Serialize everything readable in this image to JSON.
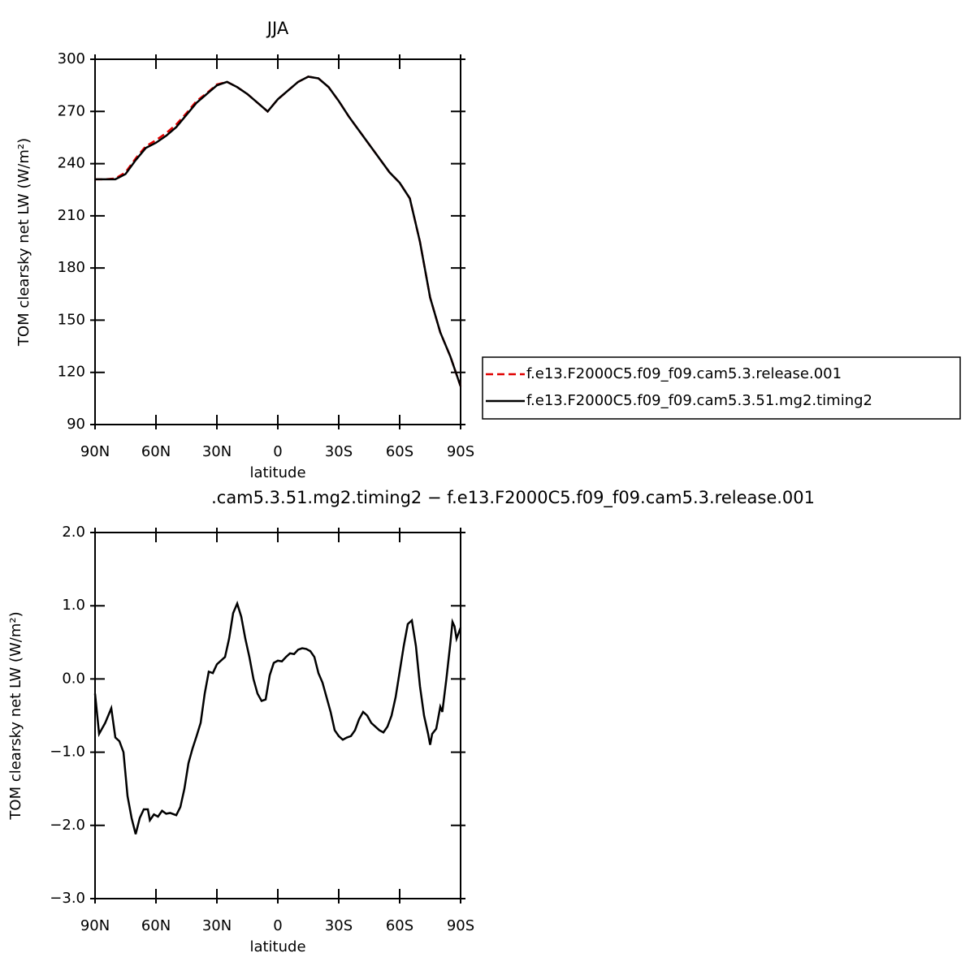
{
  "chart_data": [
    {
      "type": "line",
      "title": "JJA",
      "xlabel": "latitude",
      "ylabel": "TOM clearsky net LW (W/m²)",
      "xlim": [
        90,
        -90
      ],
      "xticks": [
        {
          "value": 90,
          "label": "90N"
        },
        {
          "value": 60,
          "label": "60N"
        },
        {
          "value": 30,
          "label": "30N"
        },
        0,
        {
          "value": -30,
          "label": "30S"
        },
        {
          "value": -60,
          "label": "60S"
        },
        {
          "value": -90,
          "label": "90S"
        }
      ],
      "ylim": [
        90,
        300
      ],
      "yticks": [
        90,
        120,
        150,
        180,
        210,
        240,
        270,
        300
      ],
      "legend": "right",
      "x": [
        90,
        85,
        80,
        75,
        70,
        65,
        60,
        55,
        50,
        45,
        40,
        35,
        30,
        25,
        20,
        15,
        10,
        5,
        0,
        -5,
        -10,
        -15,
        -20,
        -25,
        -30,
        -35,
        -40,
        -45,
        -50,
        -55,
        -60,
        -65,
        -70,
        -75,
        -80,
        -85,
        -90
      ],
      "series": [
        {
          "name": "f.e13.F2000C5.f09_f09.cam5.3.release.001",
          "color": "#e00000",
          "dash": "dashed",
          "values": [
            231,
            231,
            231.5,
            235,
            243,
            250,
            253.5,
            257.5,
            262.5,
            269,
            276,
            280.5,
            285.5,
            287,
            284,
            280,
            275,
            270,
            277,
            282,
            287,
            290,
            289,
            284,
            276,
            267,
            259,
            251,
            243,
            235,
            229,
            220,
            195,
            163,
            143,
            129,
            112
          ]
        },
        {
          "name": "f.e13.F2000C5.f09_f09.cam5.3.51.mg2.timing2",
          "color": "#000000",
          "dash": "solid",
          "values": [
            231,
            231,
            231,
            234,
            242,
            249,
            252,
            256,
            261,
            268,
            275,
            280,
            285,
            287,
            284,
            280,
            275,
            270,
            277,
            282,
            287,
            290,
            289,
            284,
            276,
            267,
            259,
            251,
            243,
            235,
            229,
            220,
            195,
            163,
            143,
            129,
            112
          ]
        }
      ]
    },
    {
      "type": "line",
      "title": ".cam5.3.51.mg2.timing2 − f.e13.F2000C5.f09_f09.cam5.3.release.001",
      "xlabel": "latitude",
      "ylabel": "TOM clearsky net LW (W/m²)",
      "xlim": [
        90,
        -90
      ],
      "xticks": [
        {
          "value": 90,
          "label": "90N"
        },
        {
          "value": 60,
          "label": "60N"
        },
        {
          "value": 30,
          "label": "30N"
        },
        0,
        {
          "value": -30,
          "label": "30S"
        },
        {
          "value": -60,
          "label": "60S"
        },
        {
          "value": -90,
          "label": "90S"
        }
      ],
      "ylim": [
        -3,
        2
      ],
      "yticks": [
        {
          "value": -3,
          "label": "−3.0"
        },
        {
          "value": -2,
          "label": "−2.0"
        },
        {
          "value": -1,
          "label": "−1.0"
        },
        {
          "value": 0,
          "label": "0.0"
        },
        {
          "value": 1,
          "label": "1.0"
        },
        {
          "value": 2,
          "label": "2.0"
        }
      ],
      "x": [
        90,
        88,
        85,
        82,
        80,
        78,
        76,
        74,
        72,
        70,
        68,
        66,
        64,
        63,
        61,
        59,
        57,
        55,
        53,
        51,
        50,
        48,
        46,
        44,
        42,
        40,
        38,
        36,
        34,
        32,
        30,
        28,
        26,
        24,
        22,
        20,
        18,
        16,
        14,
        12,
        10,
        8,
        6,
        4,
        2,
        0,
        -2,
        -4,
        -6,
        -8,
        -10,
        -12,
        -14,
        -16,
        -18,
        -20,
        -22,
        -24,
        -26,
        -28,
        -30,
        -32,
        -34,
        -36,
        -38,
        -40,
        -42,
        -44,
        -46,
        -48,
        -50,
        -52,
        -54,
        -56,
        -58,
        -60,
        -62,
        -64,
        -66,
        -68,
        -70,
        -72,
        -74,
        -75,
        -76,
        -78,
        -80,
        -81,
        -83,
        -85,
        -86,
        -87,
        -88,
        -90
      ],
      "series": [
        {
          "color": "#000000",
          "dash": "solid",
          "values": [
            -0.2,
            -0.75,
            -0.6,
            -0.4,
            -0.8,
            -0.85,
            -1.0,
            -1.6,
            -1.9,
            -2.12,
            -1.9,
            -1.78,
            -1.78,
            -1.93,
            -1.85,
            -1.88,
            -1.8,
            -1.84,
            -1.83,
            -1.85,
            -1.86,
            -1.75,
            -1.5,
            -1.15,
            -0.95,
            -0.78,
            -0.6,
            -0.2,
            0.1,
            0.08,
            0.2,
            0.25,
            0.3,
            0.55,
            0.9,
            1.03,
            0.85,
            0.55,
            0.3,
            0.0,
            -0.2,
            -0.3,
            -0.28,
            0.05,
            0.22,
            0.25,
            0.24,
            0.3,
            0.35,
            0.34,
            0.4,
            0.42,
            0.41,
            0.38,
            0.3,
            0.08,
            -0.05,
            -0.25,
            -0.45,
            -0.7,
            -0.78,
            -0.83,
            -0.8,
            -0.78,
            -0.7,
            -0.55,
            -0.45,
            -0.5,
            -0.6,
            -0.65,
            -0.7,
            -0.73,
            -0.65,
            -0.5,
            -0.25,
            0.1,
            0.45,
            0.75,
            0.8,
            0.45,
            -0.1,
            -0.5,
            -0.75,
            -0.9,
            -0.75,
            -0.68,
            -0.38,
            -0.45,
            0.0,
            0.5,
            0.78,
            0.72,
            0.55,
            0.7
          ]
        }
      ]
    }
  ]
}
